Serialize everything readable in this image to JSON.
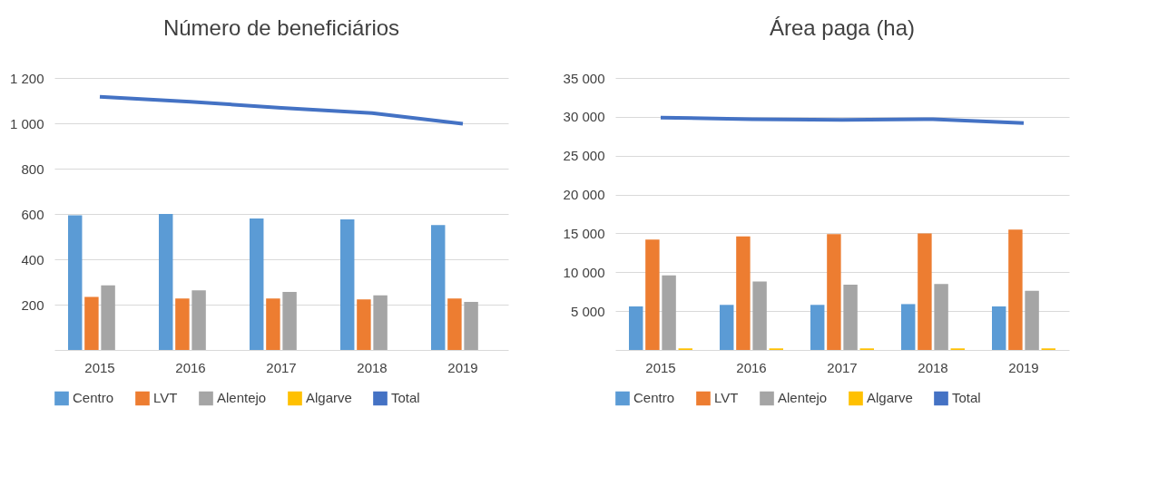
{
  "chart_data": [
    {
      "type": "bar",
      "title": "Número de beneficiários",
      "categories": [
        "2015",
        "2016",
        "2017",
        "2018",
        "2019"
      ],
      "ylim": [
        0,
        1200
      ],
      "yticks": [
        200,
        400,
        600,
        800,
        {
          "value": 1000,
          "label": "1 000"
        },
        {
          "value": 1200,
          "label": "1 200"
        }
      ],
      "grid": "y",
      "legend": "bottom",
      "series": [
        {
          "name": "Centro",
          "color": "#5b9bd5",
          "values": [
            594,
            600,
            580,
            576,
            551
          ]
        },
        {
          "name": "LVT",
          "color": "#ed7d31",
          "values": [
            234,
            227,
            227,
            223,
            227
          ]
        },
        {
          "name": "Alentejo",
          "color": "#a5a5a5",
          "values": [
            285,
            263,
            256,
            241,
            212
          ]
        },
        {
          "name": "Algarve",
          "color": "#ffc000",
          "values": [
            null,
            null,
            null,
            null,
            null
          ]
        },
        {
          "name": "Total",
          "color": "#4472c4",
          "type": "line",
          "values": [
            1117,
            1095,
            1068,
            1045,
            998
          ]
        }
      ]
    },
    {
      "type": "bar",
      "title": "Área paga (ha)",
      "categories": [
        "2015",
        "2016",
        "2017",
        "2018",
        "2019"
      ],
      "ylim": [
        0,
        35000
      ],
      "yticks": [
        {
          "value": 5000,
          "label": "5 000"
        },
        {
          "value": 10000,
          "label": "10 000"
        },
        {
          "value": 15000,
          "label": "15 000"
        },
        {
          "value": 20000,
          "label": "20 000"
        },
        {
          "value": 25000,
          "label": "25 000"
        },
        {
          "value": 30000,
          "label": "30 000"
        },
        {
          "value": 35000,
          "label": "35 000"
        }
      ],
      "grid": "y",
      "legend": "bottom",
      "series": [
        {
          "name": "Centro",
          "color": "#5b9bd5",
          "values": [
            5600,
            5800,
            5800,
            5900,
            5600
          ]
        },
        {
          "name": "LVT",
          "color": "#ed7d31",
          "values": [
            14200,
            14600,
            14900,
            15000,
            15500
          ]
        },
        {
          "name": "Alentejo",
          "color": "#a5a5a5",
          "values": [
            9600,
            8800,
            8400,
            8500,
            7600
          ]
        },
        {
          "name": "Algarve",
          "color": "#ffc000",
          "values": [
            200,
            200,
            200,
            200,
            200
          ]
        },
        {
          "name": "Total",
          "color": "#4472c4",
          "type": "line",
          "values": [
            29900,
            29700,
            29600,
            29700,
            29200
          ]
        }
      ]
    }
  ]
}
